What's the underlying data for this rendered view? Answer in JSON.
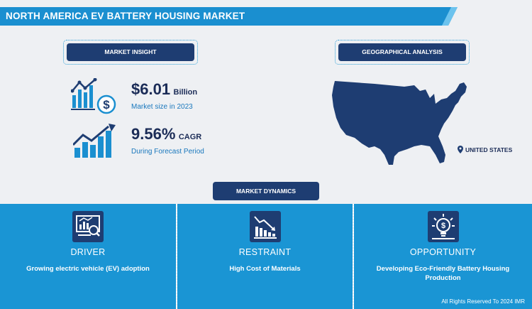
{
  "header": {
    "title": "NORTH AMERICA EV BATTERY HOUSING MARKET"
  },
  "market_insight": {
    "label": "MARKET INSIGHT",
    "size": {
      "value": "$6.01",
      "unit": "Billion",
      "caption": "Market size in 2023"
    },
    "cagr": {
      "value": "9.56%",
      "unit": "CAGR",
      "caption": "During Forecast Period"
    }
  },
  "geography": {
    "label": "GEOGRAPHICAL ANALYSIS",
    "region": "UNITED STATES"
  },
  "dynamics": {
    "label": "MARKET DYNAMICS",
    "items": [
      {
        "title": "DRIVER",
        "description": "Growing electric vehicle (EV) adoption"
      },
      {
        "title": "RESTRAINT",
        "description": "High Cost of Materials"
      },
      {
        "title": "OPPORTUNITY",
        "description": "Developing Eco-Friendly Battery Housing Production"
      }
    ]
  },
  "footer": {
    "copyright": "All Rights Reserved To 2024 IMR"
  },
  "colors": {
    "navy": "#1e3d72",
    "blue": "#1a95d4",
    "banner": "#1a8fd0",
    "text_dark": "#1b2c57",
    "text_blue": "#1a78bd"
  },
  "icons": [
    "money-chart-icon",
    "growth-chart-icon",
    "pin-icon",
    "analytics-icon",
    "decline-chart-icon",
    "idea-icon"
  ]
}
